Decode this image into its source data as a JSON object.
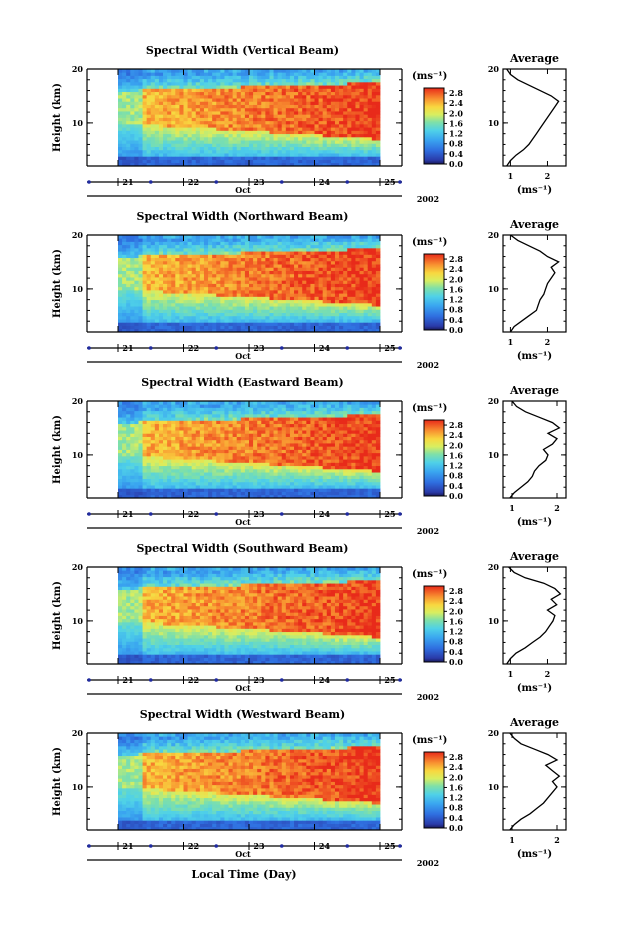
{
  "figure": {
    "common_xlabel": "Local Time (Day)"
  },
  "chart_data": [
    {
      "type": "heatmap",
      "title": "Spectral Width (Vertical Beam)",
      "ylabel": "Height (km)",
      "xlabel": "Oct",
      "year": "2002",
      "x_ticks": [
        "21",
        "22",
        "23",
        "24",
        "25"
      ],
      "y_ticks": [
        "10",
        "20"
      ],
      "ylim": [
        2,
        20
      ],
      "colorbar": {
        "unit": "(ms⁻¹)",
        "ticks": [
          "0.0",
          "0.4",
          "0.8",
          "1.2",
          "1.6",
          "2.0",
          "2.4",
          "2.8"
        ],
        "range": [
          0,
          3.0
        ]
      },
      "profile": {
        "title": "Average",
        "xlabel": "(ms⁻¹)",
        "x_ticks": [
          "1",
          "2"
        ],
        "xlim": [
          0.8,
          2.5
        ],
        "y_ticks": [
          "10",
          "20"
        ],
        "heights": [
          2,
          3,
          4,
          5,
          6,
          7,
          8,
          9,
          10,
          11,
          12,
          13,
          14,
          15,
          16,
          17,
          18,
          19,
          20
        ],
        "values": [
          0.9,
          1.0,
          1.15,
          1.35,
          1.5,
          1.6,
          1.7,
          1.8,
          1.9,
          2.0,
          2.1,
          2.2,
          2.3,
          2.1,
          1.8,
          1.5,
          1.2,
          1.0,
          0.9
        ]
      }
    },
    {
      "type": "heatmap",
      "title": "Spectral Width (Northward Beam)",
      "ylabel": "Height (km)",
      "xlabel": "Oct",
      "year": "2002",
      "x_ticks": [
        "21",
        "22",
        "23",
        "24",
        "25"
      ],
      "y_ticks": [
        "10",
        "20"
      ],
      "ylim": [
        2,
        20
      ],
      "colorbar": {
        "unit": "(ms⁻¹)",
        "ticks": [
          "0.0",
          "0.4",
          "0.8",
          "1.2",
          "1.6",
          "2.0",
          "2.4",
          "2.8"
        ],
        "range": [
          0,
          3.0
        ]
      },
      "profile": {
        "title": "Average",
        "xlabel": "(ms⁻¹)",
        "x_ticks": [
          "1",
          "2"
        ],
        "xlim": [
          0.8,
          2.5
        ],
        "y_ticks": [
          "10",
          "20"
        ],
        "heights": [
          2,
          3,
          4,
          5,
          6,
          7,
          8,
          9,
          10,
          11,
          12,
          13,
          14,
          15,
          16,
          17,
          18,
          19,
          20
        ],
        "values": [
          1.0,
          1.1,
          1.3,
          1.5,
          1.7,
          1.75,
          1.8,
          1.9,
          1.95,
          2.0,
          2.1,
          2.2,
          2.1,
          2.3,
          2.0,
          1.8,
          1.5,
          1.2,
          1.0
        ]
      }
    },
    {
      "type": "heatmap",
      "title": "Spectral Width (Eastward Beam)",
      "ylabel": "Height (km)",
      "xlabel": "Oct",
      "year": "2002",
      "x_ticks": [
        "21",
        "22",
        "23",
        "24",
        "25"
      ],
      "y_ticks": [
        "10",
        "20"
      ],
      "ylim": [
        2,
        20
      ],
      "colorbar": {
        "unit": "(ms⁻¹)",
        "ticks": [
          "0.0",
          "0.4",
          "0.8",
          "1.2",
          "1.6",
          "2.0",
          "2.4",
          "2.8"
        ],
        "range": [
          0,
          3.0
        ]
      },
      "profile": {
        "title": "Average",
        "xlabel": "(ms⁻¹)",
        "x_ticks": [
          "1",
          "2"
        ],
        "xlim": [
          0.8,
          2.2
        ],
        "y_ticks": [
          "10",
          "20"
        ],
        "heights": [
          2,
          3,
          4,
          5,
          6,
          7,
          8,
          9,
          10,
          11,
          12,
          13,
          14,
          15,
          16,
          17,
          18,
          19,
          20
        ],
        "values": [
          0.95,
          1.05,
          1.2,
          1.35,
          1.45,
          1.5,
          1.6,
          1.75,
          1.8,
          1.7,
          1.9,
          2.0,
          1.8,
          2.05,
          1.9,
          1.6,
          1.3,
          1.1,
          1.0
        ]
      }
    },
    {
      "type": "heatmap",
      "title": "Spectral Width (Southward Beam)",
      "ylabel": "Height (km)",
      "xlabel": "Oct",
      "year": "2002",
      "x_ticks": [
        "21",
        "22",
        "23",
        "24",
        "25"
      ],
      "y_ticks": [
        "10",
        "20"
      ],
      "ylim": [
        2,
        20
      ],
      "colorbar": {
        "unit": "(ms⁻¹)",
        "ticks": [
          "0.0",
          "0.4",
          "0.8",
          "1.2",
          "1.6",
          "2.0",
          "2.4",
          "2.8"
        ],
        "range": [
          0,
          3.0
        ]
      },
      "profile": {
        "title": "Average",
        "xlabel": "(ms⁻¹)",
        "x_ticks": [
          "1",
          "2"
        ],
        "xlim": [
          0.8,
          2.5
        ],
        "y_ticks": [
          "10",
          "20"
        ],
        "heights": [
          2,
          3,
          4,
          5,
          6,
          7,
          8,
          9,
          10,
          11,
          12,
          13,
          14,
          15,
          16,
          17,
          18,
          19,
          20
        ],
        "values": [
          0.9,
          1.0,
          1.15,
          1.4,
          1.6,
          1.8,
          1.95,
          2.05,
          2.15,
          2.2,
          2.0,
          2.25,
          2.1,
          2.35,
          2.2,
          1.9,
          1.4,
          1.1,
          0.95
        ]
      }
    },
    {
      "type": "heatmap",
      "title": "Spectral Width (Westward Beam)",
      "ylabel": "Height (km)",
      "xlabel": "Oct",
      "year": "2002",
      "x_ticks": [
        "21",
        "22",
        "23",
        "24",
        "25"
      ],
      "y_ticks": [
        "10",
        "20"
      ],
      "ylim": [
        2,
        20
      ],
      "colorbar": {
        "unit": "(ms⁻¹)",
        "ticks": [
          "0.0",
          "0.4",
          "0.8",
          "1.2",
          "1.6",
          "2.0",
          "2.4",
          "2.8"
        ],
        "range": [
          0,
          3.0
        ]
      },
      "profile": {
        "title": "Average",
        "xlabel": "(ms⁻¹)",
        "x_ticks": [
          "1",
          "2"
        ],
        "xlim": [
          0.8,
          2.2
        ],
        "y_ticks": [
          "10",
          "20"
        ],
        "heights": [
          2,
          3,
          4,
          5,
          6,
          7,
          8,
          9,
          10,
          11,
          12,
          13,
          14,
          15,
          16,
          17,
          18,
          19,
          20
        ],
        "values": [
          0.95,
          1.05,
          1.2,
          1.4,
          1.55,
          1.7,
          1.8,
          1.9,
          2.0,
          1.9,
          2.05,
          1.9,
          1.75,
          2.0,
          1.8,
          1.5,
          1.2,
          1.05,
          0.95
        ]
      }
    }
  ]
}
